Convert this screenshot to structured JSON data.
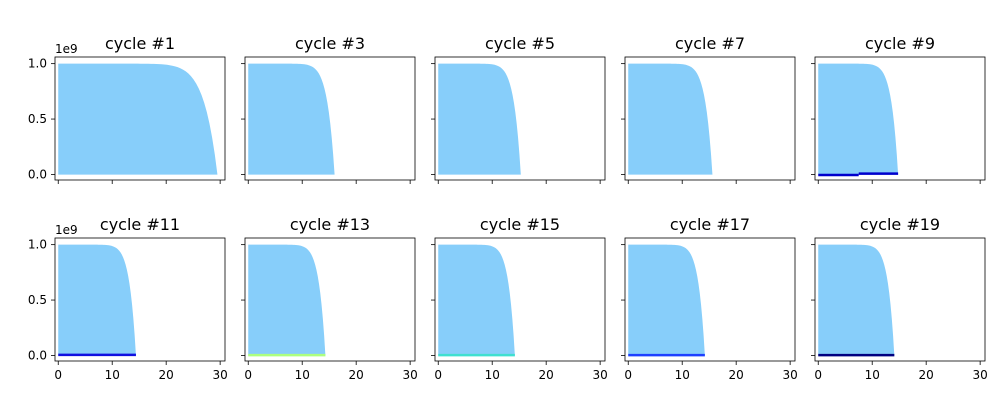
{
  "chart_data": {
    "type": "area",
    "layout": "2x5 grid of subplots",
    "sharex": true,
    "sharey": true,
    "xlim": [
      -0.6,
      30.9
    ],
    "ylim": [
      -50000000,
      1060000000
    ],
    "x_ticks": [
      0,
      10,
      20,
      30
    ],
    "y_ticks": [
      0.0,
      0.5,
      1.0
    ],
    "y_tick_labels": [
      "0.0",
      "0.5",
      "1.0"
    ],
    "y_offset_label": "1e9",
    "grid": false,
    "fill_color": "#87cefa",
    "panels": [
      {
        "title": "cycle #1",
        "row": 0,
        "col": 0,
        "end_x": 29.5,
        "lines": []
      },
      {
        "title": "cycle #3",
        "row": 0,
        "col": 1,
        "end_x": 16.0,
        "lines": []
      },
      {
        "title": "cycle #5",
        "row": 0,
        "col": 2,
        "end_x": 15.3,
        "lines": []
      },
      {
        "title": "cycle #7",
        "row": 0,
        "col": 3,
        "end_x": 15.6,
        "lines": []
      },
      {
        "title": "cycle #9",
        "row": 0,
        "col": 4,
        "end_x": 14.8,
        "lines": [
          {
            "color": "#0000cd",
            "x": [
              0,
              7.5
            ],
            "y": [
              -5000000,
              -5000000
            ]
          },
          {
            "color": "#0000cd",
            "x": [
              7.5,
              14.8
            ],
            "y": [
              8000000,
              8000000
            ]
          }
        ]
      },
      {
        "title": "cycle #11",
        "row": 1,
        "col": 0,
        "end_x": 14.4,
        "lines": [
          {
            "color": "#1010e0",
            "x": [
              0,
              14.4
            ],
            "y": [
              5000000,
              5000000
            ]
          }
        ]
      },
      {
        "title": "cycle #13",
        "row": 1,
        "col": 1,
        "end_x": 14.3,
        "lines": [
          {
            "color": "#adff7f",
            "x": [
              0,
              14.3
            ],
            "y": [
              3000000,
              3000000
            ]
          }
        ]
      },
      {
        "title": "cycle #15",
        "row": 1,
        "col": 2,
        "end_x": 14.2,
        "lines": [
          {
            "color": "#40e0d0",
            "x": [
              0,
              14.2
            ],
            "y": [
              3000000,
              3000000
            ]
          }
        ]
      },
      {
        "title": "cycle #17",
        "row": 1,
        "col": 3,
        "end_x": 14.2,
        "lines": [
          {
            "color": "#1e40ff",
            "x": [
              0,
              14.2
            ],
            "y": [
              3000000,
              3000000
            ]
          }
        ]
      },
      {
        "title": "cycle #19",
        "row": 1,
        "col": 4,
        "end_x": 14.1,
        "lines": [
          {
            "color": "#000080",
            "x": [
              0,
              14.1
            ],
            "y": [
              3000000,
              3000000
            ]
          }
        ]
      }
    ]
  }
}
